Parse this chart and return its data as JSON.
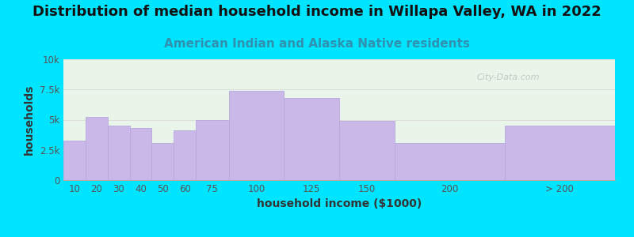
{
  "title": "Distribution of median household income in Willapa Valley, WA in 2022",
  "subtitle": "American Indian and Alaska Native residents",
  "xlabel": "household income ($1000)",
  "ylabel": "households",
  "bar_left_edges": [
    0,
    10,
    20,
    30,
    40,
    50,
    60,
    75,
    100,
    125,
    150,
    200
  ],
  "bar_widths": [
    10,
    10,
    10,
    10,
    10,
    10,
    15,
    25,
    25,
    25,
    50,
    50
  ],
  "bar_values": [
    3300,
    5200,
    4500,
    4300,
    3100,
    4100,
    5000,
    7400,
    6800,
    4900,
    3100,
    4500
  ],
  "bar_tick_positions": [
    5,
    15,
    25,
    35,
    45,
    55,
    67.5,
    87.5,
    112.5,
    137.5,
    175,
    225
  ],
  "bar_tick_labels": [
    "10",
    "20",
    "30",
    "40",
    "50",
    "60",
    "75",
    "100",
    "125",
    "150",
    "200",
    "> 200"
  ],
  "bar_color": "#c9b8e8",
  "bar_edge_color": "#b8a8dc",
  "background_color": "#00e5ff",
  "plot_bg_color": "#eaf5ea",
  "ylim": [
    0,
    10000
  ],
  "yticks": [
    0,
    2500,
    5000,
    7500,
    10000
  ],
  "ytick_labels": [
    "0",
    "2.5k",
    "5k",
    "7.5k",
    "10k"
  ],
  "xlim": [
    0,
    250
  ],
  "title_fontsize": 13,
  "subtitle_fontsize": 11,
  "subtitle_color": "#3090b0",
  "axis_label_fontsize": 10,
  "tick_fontsize": 8.5,
  "watermark": "City-Data.com"
}
